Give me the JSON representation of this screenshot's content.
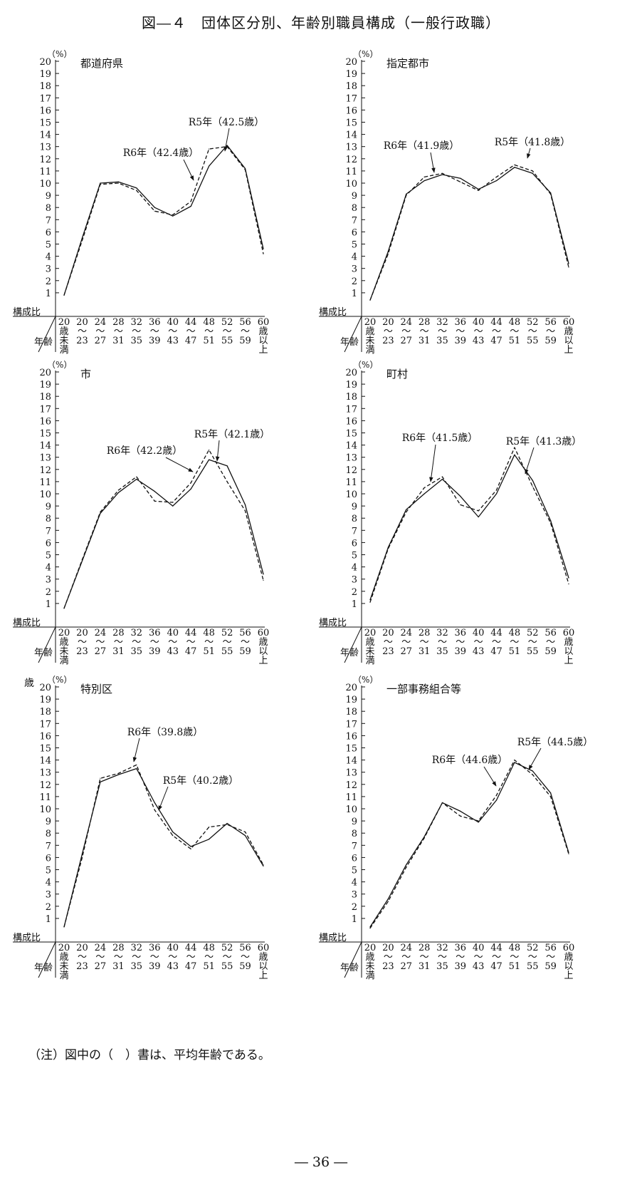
{
  "figure_title": "図―４　団体区分別、年齢別職員構成（一般行政職）",
  "note": "（注）図中の（　）書は、平均年齢である。",
  "page_number": "― 36 ―",
  "common": {
    "y_unit": "（%）",
    "y_ticks": [
      "20",
      "19",
      "18",
      "17",
      "16",
      "15",
      "14",
      "13",
      "12",
      "11",
      "10",
      "9",
      "8",
      "7",
      "6",
      "5",
      "4",
      "3",
      "2",
      "1"
    ],
    "row_header_ratio": "構成比",
    "row_header_age": "年齢",
    "x_labels": [
      [
        "20",
        "歳",
        "未",
        "満"
      ],
      [
        "20",
        "～",
        "23"
      ],
      [
        "24",
        "～",
        "27"
      ],
      [
        "28",
        "～",
        "31"
      ],
      [
        "32",
        "～",
        "35"
      ],
      [
        "36",
        "～",
        "39"
      ],
      [
        "40",
        "～",
        "43"
      ],
      [
        "44",
        "～",
        "47"
      ],
      [
        "48",
        "～",
        "51"
      ],
      [
        "52",
        "～",
        "55"
      ],
      [
        "56",
        "～",
        "59"
      ],
      [
        "60",
        "歳",
        "以",
        "上"
      ]
    ],
    "stray_mark": "歳"
  },
  "chart_data": [
    {
      "type": "line",
      "title": "都道府県",
      "categories": [
        "20歳未満",
        "20～23",
        "24～27",
        "28～31",
        "32～35",
        "36～39",
        "40～43",
        "44～47",
        "48～51",
        "52～55",
        "56～59",
        "60歳以上"
      ],
      "ylim": [
        0,
        20
      ],
      "series": [
        {
          "name": "R6年（42.4歳）",
          "style": "solid",
          "values": [
            0.8,
            5.5,
            10.0,
            10.1,
            9.6,
            8.0,
            7.3,
            8.1,
            11.4,
            13.1,
            11.2,
            4.6
          ]
        },
        {
          "name": "R5年（42.5歳）",
          "style": "dashed",
          "values": [
            0.8,
            5.3,
            9.9,
            10.0,
            9.4,
            7.7,
            7.4,
            8.5,
            12.8,
            13.0,
            11.1,
            4.2
          ]
        }
      ]
    },
    {
      "type": "line",
      "title": "指定都市",
      "categories": [
        "20歳未満",
        "20～23",
        "24～27",
        "28～31",
        "32～35",
        "36～39",
        "40～43",
        "44～47",
        "48～51",
        "52～55",
        "56～59",
        "60歳以上"
      ],
      "ylim": [
        0,
        20
      ],
      "series": [
        {
          "name": "R6年（41.9歳）",
          "style": "solid",
          "values": [
            0.4,
            4.4,
            9.1,
            10.2,
            10.7,
            10.4,
            9.5,
            10.2,
            11.3,
            10.8,
            9.2,
            3.4
          ]
        },
        {
          "name": "R5年（41.8歳）",
          "style": "dashed",
          "values": [
            0.4,
            4.2,
            9.0,
            10.5,
            10.8,
            10.1,
            9.4,
            10.5,
            11.5,
            11.0,
            9.1,
            3.1
          ]
        }
      ]
    },
    {
      "type": "line",
      "title": "市",
      "categories": [
        "20歳未満",
        "20～23",
        "24～27",
        "28～31",
        "32～35",
        "36～39",
        "40～43",
        "44～47",
        "48～51",
        "52～55",
        "56～59",
        "60歳以上"
      ],
      "ylim": [
        0,
        20
      ],
      "series": [
        {
          "name": "R6年（42.2歳）",
          "style": "solid",
          "values": [
            0.6,
            4.5,
            8.4,
            10.1,
            11.2,
            10.2,
            9.0,
            10.4,
            12.8,
            12.3,
            9.1,
            3.4
          ]
        },
        {
          "name": "R5年（42.1歳）",
          "style": "dashed",
          "values": [
            0.6,
            4.6,
            8.5,
            10.3,
            11.4,
            9.4,
            9.3,
            10.9,
            13.6,
            11.0,
            8.6,
            2.9
          ]
        }
      ]
    },
    {
      "type": "line",
      "title": "町村",
      "categories": [
        "20歳未満",
        "20～23",
        "24～27",
        "28～31",
        "32～35",
        "36～39",
        "40～43",
        "44～47",
        "48～51",
        "52～55",
        "56～59",
        "60歳以上"
      ],
      "ylim": [
        0,
        20
      ],
      "series": [
        {
          "name": "R6年（41.5歳）",
          "style": "solid",
          "values": [
            1.3,
            5.6,
            8.7,
            10.0,
            11.2,
            9.8,
            8.1,
            10.0,
            13.2,
            11.1,
            7.8,
            3.1
          ]
        },
        {
          "name": "R5年（41.3歳）",
          "style": "dashed",
          "values": [
            1.1,
            5.5,
            8.5,
            10.5,
            11.4,
            9.1,
            8.6,
            10.3,
            13.8,
            10.6,
            7.6,
            2.6
          ]
        }
      ]
    },
    {
      "type": "line",
      "title": "特別区",
      "categories": [
        "20歳未満",
        "20～23",
        "24～27",
        "28～31",
        "32～35",
        "36～39",
        "40～43",
        "44～47",
        "48～51",
        "52～55",
        "56～59",
        "60歳以上"
      ],
      "ylim": [
        0,
        20
      ],
      "series": [
        {
          "name": "R6年（39.8歳）",
          "style": "solid",
          "values": [
            0.3,
            6.3,
            12.2,
            12.8,
            13.3,
            10.5,
            8.1,
            6.9,
            7.5,
            8.8,
            7.8,
            5.3
          ]
        },
        {
          "name": "R5年（40.2歳）",
          "style": "dashed",
          "values": [
            0.3,
            6.0,
            12.5,
            12.9,
            13.6,
            9.9,
            7.8,
            6.7,
            8.5,
            8.7,
            8.1,
            5.4
          ]
        }
      ]
    },
    {
      "type": "line",
      "title": "一部事務組合等",
      "categories": [
        "20歳未満",
        "20～23",
        "24～27",
        "28～31",
        "32～35",
        "36～39",
        "40～43",
        "44～47",
        "48～51",
        "52～55",
        "56～59",
        "60歳以上"
      ],
      "ylim": [
        0,
        20
      ],
      "series": [
        {
          "name": "R6年（44.6歳）",
          "style": "solid",
          "values": [
            0.3,
            2.6,
            5.4,
            7.7,
            10.5,
            9.8,
            8.9,
            10.7,
            13.8,
            13.1,
            11.3,
            6.4
          ]
        },
        {
          "name": "R5年（44.5歳）",
          "style": "dashed",
          "values": [
            0.2,
            2.4,
            5.2,
            7.6,
            10.5,
            9.4,
            9.0,
            11.1,
            14.0,
            12.8,
            11.0,
            6.3
          ]
        }
      ]
    }
  ]
}
